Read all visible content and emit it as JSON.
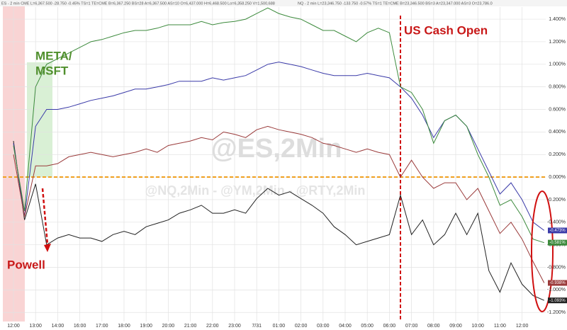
{
  "chart_data": {
    "type": "line",
    "header": [
      "ES - 2 min CME  L=6,367.500  -28.750  -0.45%  TS=1  TE=CME  B=6,367.250  BS=28  A=6,367.500  AS=10  O=6,437.000  H=6,468.500  Lo=6,358.250  V=1,500,688",
      "NQ - 2 min  L=23,346.750  -133.750  -0.57%  TS=1  TE=CME  B=23,346.500  BS=3  A=23,347.000  AS=3  O=23,786.0"
    ],
    "watermarks": [
      "@ES,2Min",
      "@NQ,2Min - @YM,2Min - @RTY,2Min"
    ],
    "annotations": [
      "US Cash Open",
      "META/",
      "MSFT",
      "Powell"
    ],
    "categories": [
      "12:00",
      null,
      "13:00",
      null,
      "14:00",
      null,
      "16:00",
      null,
      "17:00",
      null,
      "18:00",
      null,
      "19:00",
      null,
      "20:00",
      null,
      "21:00",
      null,
      "22:00",
      null,
      "23:00",
      null,
      "7/31",
      null,
      "01:00",
      null,
      "02:00",
      null,
      "03:00",
      null,
      "04:00",
      null,
      "05:00",
      null,
      "06:00",
      null,
      "07:00",
      null,
      "08:00",
      null,
      "09:00",
      null,
      "10:00",
      null,
      "11:00",
      null,
      "12:00",
      null,
      null
    ],
    "series": [
      {
        "name": "ES",
        "color": "#222222",
        "values": [
          0.32,
          -0.38,
          -0.06,
          -0.6,
          -0.54,
          -0.51,
          -0.54,
          -0.54,
          -0.57,
          -0.51,
          -0.48,
          -0.51,
          -0.44,
          -0.41,
          -0.38,
          -0.32,
          -0.29,
          -0.25,
          -0.32,
          -0.32,
          -0.29,
          -0.32,
          -0.19,
          -0.1,
          -0.16,
          -0.13,
          -0.19,
          -0.25,
          -0.32,
          -0.44,
          -0.51,
          -0.6,
          -0.57,
          -0.54,
          -0.51,
          -0.16,
          -0.51,
          -0.38,
          -0.6,
          -0.51,
          -0.32,
          -0.51,
          -0.32,
          -0.83,
          -1.02,
          -0.76,
          -0.95,
          -1.05,
          -1.093
        ],
        "value_labels": [
          null,
          null,
          null,
          null,
          null,
          null,
          null,
          null,
          null,
          null,
          null,
          null,
          null,
          null,
          null,
          null,
          null,
          null,
          null,
          null,
          null,
          null,
          null,
          null,
          null,
          null,
          null,
          null,
          null,
          null,
          null,
          null,
          null,
          null,
          null,
          null,
          null,
          null,
          null,
          null,
          null,
          null,
          null,
          null,
          null,
          null,
          null,
          null,
          "-1.093%"
        ]
      },
      {
        "name": "NQ",
        "color": "#3a3aa8",
        "values": [
          0.3,
          -0.35,
          0.45,
          0.6,
          0.6,
          0.62,
          0.65,
          0.68,
          0.7,
          0.72,
          0.75,
          0.78,
          0.78,
          0.8,
          0.82,
          0.85,
          0.85,
          0.85,
          0.88,
          0.86,
          0.88,
          0.9,
          0.95,
          1.0,
          1.02,
          1.0,
          0.98,
          0.95,
          0.92,
          0.9,
          0.9,
          0.9,
          0.92,
          0.9,
          0.88,
          0.8,
          0.7,
          0.55,
          0.35,
          0.5,
          0.55,
          0.45,
          0.25,
          0.05,
          -0.15,
          -0.05,
          -0.2,
          -0.4,
          -0.473
        ],
        "value_labels": [
          null,
          null,
          null,
          null,
          null,
          null,
          null,
          null,
          null,
          null,
          null,
          null,
          null,
          null,
          null,
          null,
          null,
          null,
          null,
          null,
          null,
          null,
          null,
          null,
          null,
          null,
          null,
          null,
          null,
          null,
          null,
          null,
          null,
          null,
          null,
          null,
          null,
          null,
          null,
          null,
          null,
          null,
          null,
          null,
          null,
          null,
          null,
          null,
          "-0.473%"
        ]
      },
      {
        "name": "YM",
        "color": "#3c8a3c",
        "values": [
          0.28,
          -0.3,
          0.8,
          1.0,
          1.05,
          1.1,
          1.15,
          1.2,
          1.22,
          1.25,
          1.28,
          1.3,
          1.3,
          1.32,
          1.35,
          1.35,
          1.35,
          1.38,
          1.35,
          1.37,
          1.38,
          1.4,
          1.45,
          1.5,
          1.45,
          1.42,
          1.4,
          1.35,
          1.3,
          1.3,
          1.25,
          1.2,
          1.28,
          1.32,
          1.28,
          0.8,
          0.75,
          0.6,
          0.3,
          0.5,
          0.55,
          0.45,
          0.2,
          0.0,
          -0.25,
          -0.2,
          -0.35,
          -0.55,
          -0.581
        ],
        "value_labels": [
          null,
          null,
          null,
          null,
          null,
          null,
          null,
          null,
          null,
          null,
          null,
          null,
          null,
          null,
          null,
          null,
          null,
          null,
          null,
          null,
          null,
          null,
          null,
          null,
          null,
          null,
          null,
          null,
          null,
          null,
          null,
          null,
          null,
          null,
          null,
          null,
          null,
          null,
          null,
          null,
          null,
          null,
          null,
          null,
          null,
          null,
          null,
          null,
          "-0.581%"
        ]
      },
      {
        "name": "RTY",
        "color": "#9a3a3a",
        "values": [
          0.2,
          -0.35,
          0.1,
          0.1,
          0.12,
          0.18,
          0.2,
          0.22,
          0.2,
          0.18,
          0.2,
          0.22,
          0.25,
          0.22,
          0.28,
          0.3,
          0.32,
          0.35,
          0.33,
          0.4,
          0.38,
          0.35,
          0.42,
          0.45,
          0.42,
          0.4,
          0.38,
          0.35,
          0.3,
          0.28,
          0.25,
          0.22,
          0.25,
          0.22,
          0.2,
          0.0,
          0.15,
          0.0,
          -0.1,
          -0.05,
          -0.05,
          -0.2,
          -0.1,
          -0.3,
          -0.5,
          -0.4,
          -0.55,
          -0.75,
          -0.938
        ],
        "value_labels": [
          null,
          null,
          null,
          null,
          null,
          null,
          null,
          null,
          null,
          null,
          null,
          null,
          null,
          null,
          null,
          null,
          null,
          null,
          null,
          null,
          null,
          null,
          null,
          null,
          null,
          null,
          null,
          null,
          null,
          null,
          null,
          null,
          null,
          null,
          null,
          null,
          null,
          null,
          null,
          null,
          null,
          null,
          null,
          null,
          null,
          null,
          null,
          null,
          "-0.938%"
        ]
      }
    ],
    "ylim": [
      -1.28,
      1.57
    ],
    "yticks": [
      {
        "value": 1.4,
        "label": "1.400%"
      },
      {
        "value": 1.2,
        "label": "1.200%"
      },
      {
        "value": 1.0,
        "label": "1.000%"
      },
      {
        "value": 0.8,
        "label": "0.800%"
      },
      {
        "value": 0.6,
        "label": "0.600%"
      },
      {
        "value": 0.4,
        "label": "0.400%"
      },
      {
        "value": 0.2,
        "label": "0.200%"
      },
      {
        "value": 0,
        "label": "0.000%"
      },
      {
        "value": -0.2,
        "label": "-0.200%"
      },
      {
        "value": -0.4,
        "label": "-0.400%"
      },
      {
        "value": -0.6,
        "label": "-0.600%"
      },
      {
        "value": -0.8,
        "label": "-0.800%"
      },
      {
        "value": -1.0,
        "label": "-1.000%"
      },
      {
        "value": -1.2,
        "label": "-1.200%"
      }
    ],
    "grid": true
  }
}
